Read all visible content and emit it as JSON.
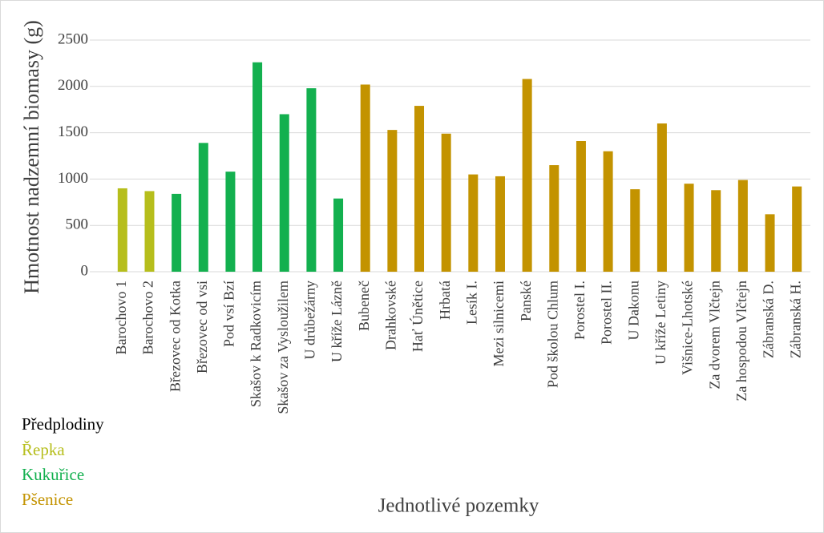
{
  "chart_data": {
    "type": "bar",
    "y_label": "Hmotnost nadzemní biomasy (g)",
    "x_label": "Jednotlivé pozemky",
    "legend_title": "Předplodiny",
    "categories": [
      "Barochovo 1",
      "Barochovo 2",
      "Březovec od Kotka",
      "Březovec od vsi",
      "Pod vsí Bzí",
      "Skašov k Radkovicím",
      "Skašov za Vysloužilem",
      "U drůbežárny",
      "U kříže Lázně",
      "Bubeneč",
      "Drahkovské",
      "Hať Únětice",
      "Hrbatá",
      "Lesík I.",
      "Mezi silnicemi",
      "Panské",
      "Pod školou Chlum",
      "Porostel I.",
      "Porostel II.",
      "U Dakonu",
      "U kříže Letiny",
      "Višnice-Lhotské",
      "Za dvorem Vlčtejn",
      "Za hospodou Vlčtejn",
      "Zábranská D.",
      "Zábranská H."
    ],
    "series": [
      {
        "name": "Řepka",
        "color": "#b6be1c",
        "values": [
          900,
          870,
          null,
          null,
          null,
          null,
          null,
          null,
          null,
          null,
          null,
          null,
          null,
          null,
          null,
          null,
          null,
          null,
          null,
          null,
          null,
          null,
          null,
          null,
          null,
          null
        ]
      },
      {
        "name": "Kukuřice",
        "color": "#13b04f",
        "values": [
          null,
          null,
          840,
          1390,
          1080,
          2260,
          1700,
          1980,
          790,
          null,
          null,
          null,
          null,
          null,
          null,
          null,
          null,
          null,
          null,
          null,
          null,
          null,
          null,
          null,
          null,
          null
        ]
      },
      {
        "name": "Pšenice",
        "color": "#c39300",
        "values": [
          null,
          null,
          null,
          null,
          null,
          null,
          null,
          null,
          null,
          2020,
          1530,
          1790,
          1490,
          1050,
          1030,
          2080,
          1150,
          1410,
          1300,
          890,
          1600,
          950,
          880,
          990,
          620,
          920
        ]
      }
    ],
    "ylim": [
      0,
      2500
    ],
    "yticks": [
      0,
      500,
      1000,
      1500,
      2000,
      2500
    ],
    "grid": true
  }
}
